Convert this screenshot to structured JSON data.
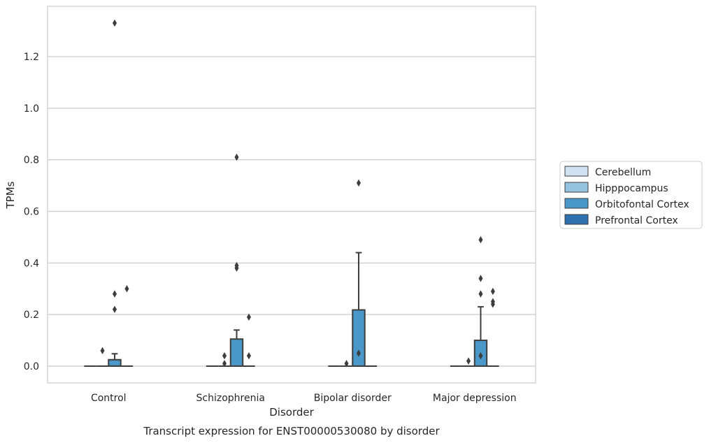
{
  "chart_data": {
    "type": "box",
    "caption": "Transcript expression for ENST00000530080 by disorder",
    "xlabel": "Disorder",
    "ylabel": "TPMs",
    "ylim": [
      -0.065,
      1.395
    ],
    "yticks": [
      0.0,
      0.2,
      0.4,
      0.6,
      0.8,
      1.0,
      1.2
    ],
    "ytick_labels": [
      "0.0",
      "0.2",
      "0.4",
      "0.6",
      "0.8",
      "1.0",
      "1.2"
    ],
    "grid": "horizontal",
    "legend_position": "right",
    "categories": [
      "Control",
      "Schizophrenia",
      "Bipolar disorder",
      "Major depression"
    ],
    "series": [
      {
        "name": "Cerebellum",
        "color": "#d0e1f2",
        "boxes": [
          {
            "q1": 0,
            "median": 0,
            "q3": 0,
            "whislo": 0,
            "whishi": 0,
            "fliers": []
          },
          {
            "q1": 0,
            "median": 0,
            "q3": 0,
            "whislo": 0,
            "whishi": 0,
            "fliers": []
          },
          {
            "q1": 0,
            "median": 0,
            "q3": 0,
            "whislo": 0,
            "whishi": 0,
            "fliers": []
          },
          {
            "q1": 0,
            "median": 0,
            "q3": 0,
            "whislo": 0,
            "whishi": 0,
            "fliers": []
          }
        ]
      },
      {
        "name": "Hipppocampus",
        "color": "#94c4df",
        "boxes": [
          {
            "q1": 0,
            "median": 0,
            "q3": 0,
            "whislo": 0,
            "whishi": 0,
            "fliers": [
              0.06
            ]
          },
          {
            "q1": 0,
            "median": 0,
            "q3": 0,
            "whislo": 0,
            "whishi": 0,
            "fliers": [
              0.04,
              0.01
            ]
          },
          {
            "q1": 0,
            "median": 0,
            "q3": 0,
            "whislo": 0,
            "whishi": 0,
            "fliers": [
              0.01
            ]
          },
          {
            "q1": 0,
            "median": 0,
            "q3": 0,
            "whislo": 0,
            "whishi": 0,
            "fliers": [
              0.02
            ]
          }
        ]
      },
      {
        "name": "Orbitofontal Cortex",
        "color": "#4a98c9",
        "boxes": [
          {
            "q1": 0,
            "median": 0,
            "q3": 0.025,
            "whislo": 0,
            "whishi": 0.048,
            "fliers": [
              1.33,
              0.28,
              0.22
            ]
          },
          {
            "q1": 0,
            "median": 0,
            "q3": 0.105,
            "whislo": 0,
            "whishi": 0.14,
            "fliers": [
              0.81,
              0.39,
              0.38
            ]
          },
          {
            "q1": 0,
            "median": 0,
            "q3": 0.218,
            "whislo": 0,
            "whishi": 0.44,
            "fliers": [
              0.71,
              0.05
            ]
          },
          {
            "q1": 0,
            "median": 0,
            "q3": 0.1,
            "whislo": 0,
            "whishi": 0.23,
            "fliers": [
              0.49,
              0.34,
              0.28,
              0.04
            ]
          }
        ]
      },
      {
        "name": "Prefrontal Cortex",
        "color": "#2e6fae",
        "boxes": [
          {
            "q1": 0,
            "median": 0,
            "q3": 0,
            "whislo": 0,
            "whishi": 0,
            "fliers": [
              0.3
            ]
          },
          {
            "q1": 0,
            "median": 0,
            "q3": 0,
            "whislo": 0,
            "whishi": 0,
            "fliers": [
              0.19,
              0.04
            ]
          },
          {
            "q1": 0,
            "median": 0,
            "q3": 0,
            "whislo": 0,
            "whishi": 0,
            "fliers": []
          },
          {
            "q1": 0,
            "median": 0,
            "q3": 0,
            "whislo": 0,
            "whishi": 0,
            "fliers": [
              0.29,
              0.25,
              0.24
            ]
          }
        ]
      }
    ]
  }
}
